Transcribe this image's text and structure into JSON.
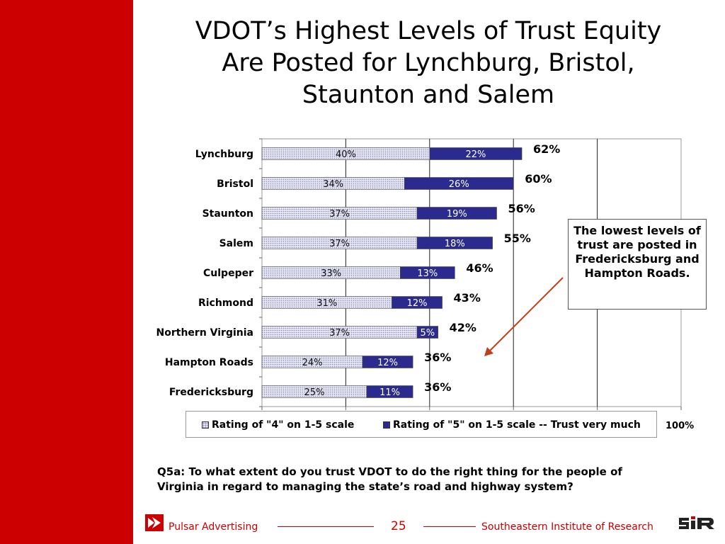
{
  "title": {
    "line1": "VDOT’s Highest Levels of Trust Equity",
    "line2": "Are Posted for Lynchburg, Bristol,",
    "line3": "Staunton and Salem"
  },
  "colors": {
    "accent_red": "#cc0000",
    "series_4": "#e4e4f2",
    "series_5": "#2b2b8f"
  },
  "chart_data": {
    "type": "bar",
    "orientation": "horizontal",
    "stacked": true,
    "categories": [
      "Lynchburg",
      "Bristol",
      "Staunton",
      "Salem",
      "Culpeper",
      "Richmond",
      "Northern Virginia",
      "Hampton Roads",
      "Fredericksburg"
    ],
    "series": [
      {
        "name": "Rating of \"4\" on 1-5 scale",
        "values": [
          40,
          34,
          37,
          37,
          33,
          31,
          37,
          24,
          25
        ],
        "labels": [
          "40%",
          "34%",
          "37%",
          "37%",
          "33%",
          "31%",
          "37%",
          "24%",
          "25%"
        ]
      },
      {
        "name": "Rating of \"5\" on 1-5 scale -- Trust very much",
        "values": [
          22,
          26,
          19,
          18,
          13,
          12,
          5,
          12,
          11
        ],
        "labels": [
          "22%",
          "26%",
          "19%",
          "18%",
          "13%",
          "12%",
          "5%",
          "12%",
          "11%"
        ]
      }
    ],
    "totals": [
      "62%",
      "60%",
      "56%",
      "55%",
      "46%",
      "43%",
      "42%",
      "36%",
      "36%"
    ],
    "xlim": [
      0,
      100
    ],
    "xtick_label_max": "100%",
    "grid": true,
    "legend_position": "bottom"
  },
  "callout": {
    "text": "The lowest levels of trust are posted in Fredericksburg and Hampton Roads."
  },
  "question": "Q5a:  To what extent do you trust VDOT to do the right thing for the people of Virginia in regard to managing the state’s road and highway system?",
  "footer": {
    "left": "Pulsar Advertising",
    "page": "25",
    "right": "Southeastern Institute of Research"
  }
}
